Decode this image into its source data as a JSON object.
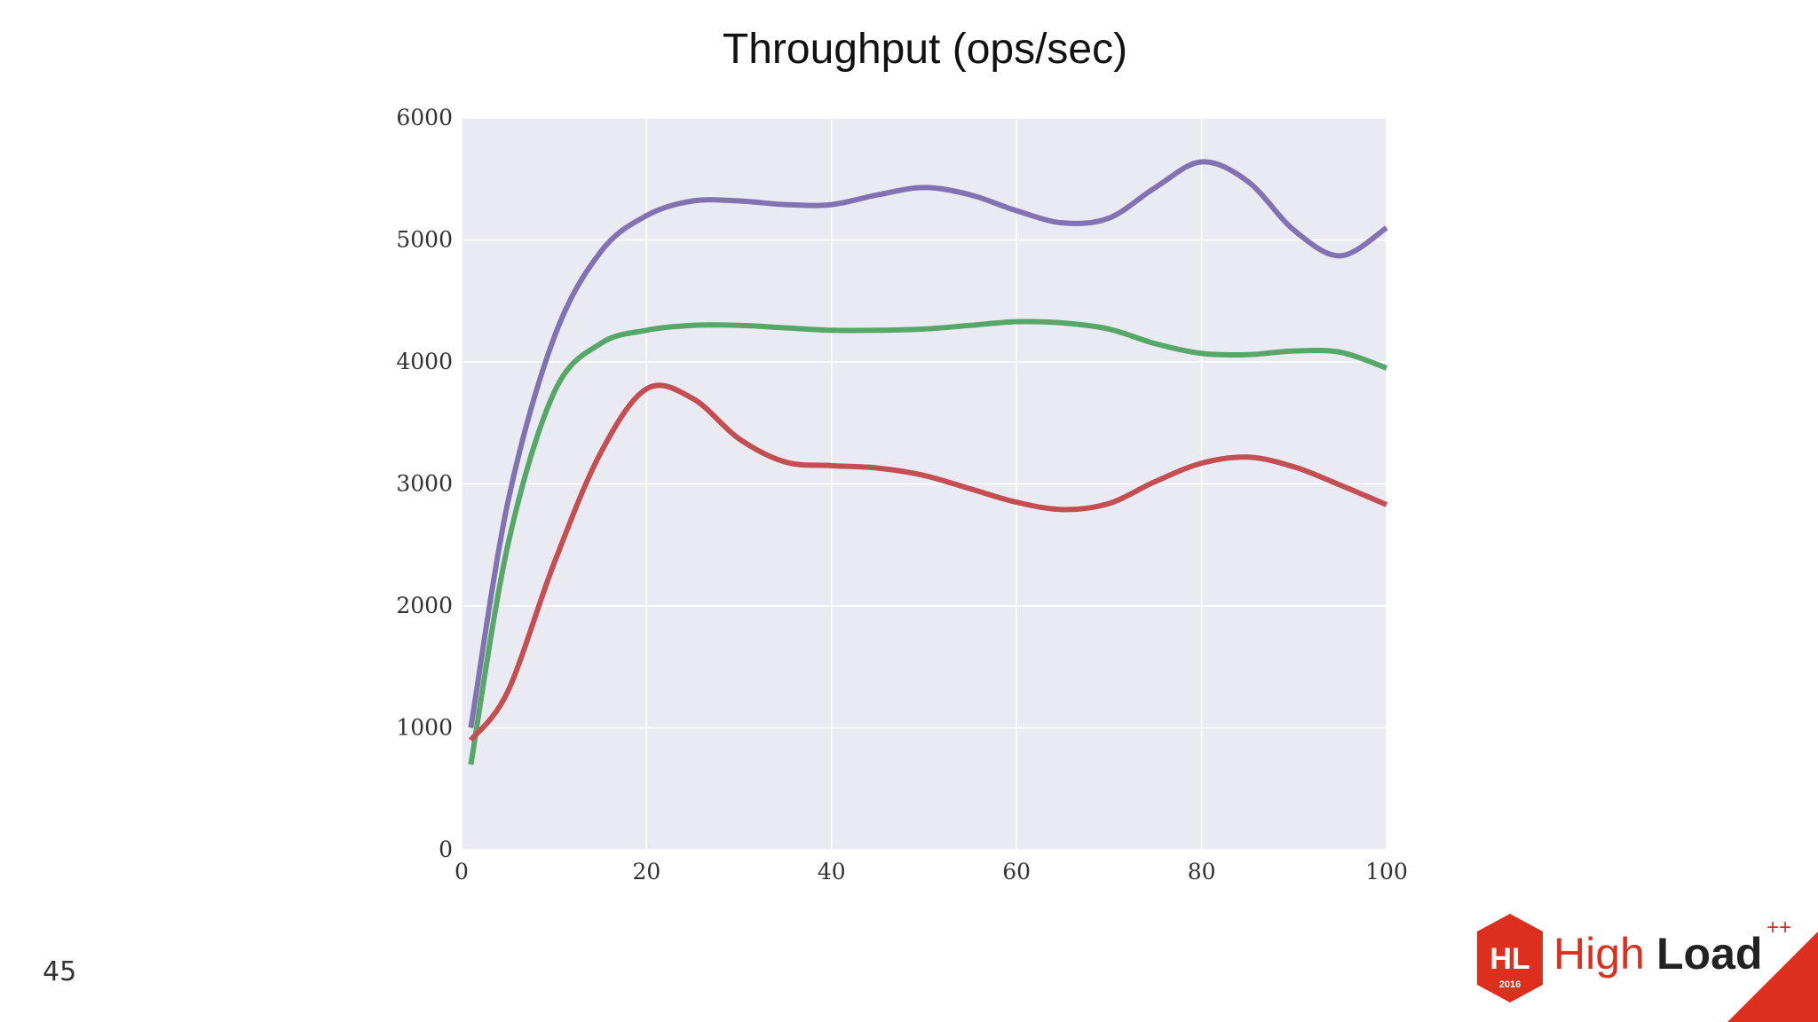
{
  "slide": {
    "page_number": "45",
    "logo": {
      "text_light": "High",
      "text_bold": "Load",
      "superscript": "++",
      "badge_text": "HL",
      "badge_year": "2016",
      "brand_color": "#dd2f1e"
    }
  },
  "chart_data": {
    "type": "line",
    "title": "Throughput (ops/sec)",
    "xlabel": "",
    "ylabel": "",
    "xlim": [
      0,
      100
    ],
    "ylim": [
      0,
      6000
    ],
    "xticks": [
      0,
      20,
      40,
      60,
      80,
      100
    ],
    "yticks": [
      0,
      1000,
      2000,
      3000,
      4000,
      5000,
      6000
    ],
    "grid": true,
    "background": "#eaeaf2",
    "x": [
      1,
      5,
      10,
      15,
      20,
      25,
      30,
      35,
      40,
      45,
      50,
      55,
      60,
      65,
      70,
      75,
      80,
      85,
      90,
      95,
      100
    ],
    "series": [
      {
        "color": "#8172b2",
        "values": [
          1000,
          2850,
          4200,
          4900,
          5200,
          5320,
          5320,
          5290,
          5290,
          5370,
          5430,
          5370,
          5240,
          5140,
          5180,
          5430,
          5640,
          5480,
          5080,
          4870,
          5100
        ]
      },
      {
        "color": "#55a868",
        "values": [
          700,
          2500,
          3750,
          4150,
          4260,
          4300,
          4300,
          4280,
          4260,
          4260,
          4270,
          4300,
          4330,
          4320,
          4270,
          4150,
          4070,
          4060,
          4090,
          4080,
          3950
        ]
      },
      {
        "color": "#c44e52",
        "values": [
          900,
          1300,
          2350,
          3250,
          3780,
          3700,
          3370,
          3180,
          3150,
          3130,
          3070,
          2960,
          2850,
          2790,
          2840,
          3020,
          3170,
          3220,
          3140,
          2990,
          2830
        ]
      }
    ]
  }
}
